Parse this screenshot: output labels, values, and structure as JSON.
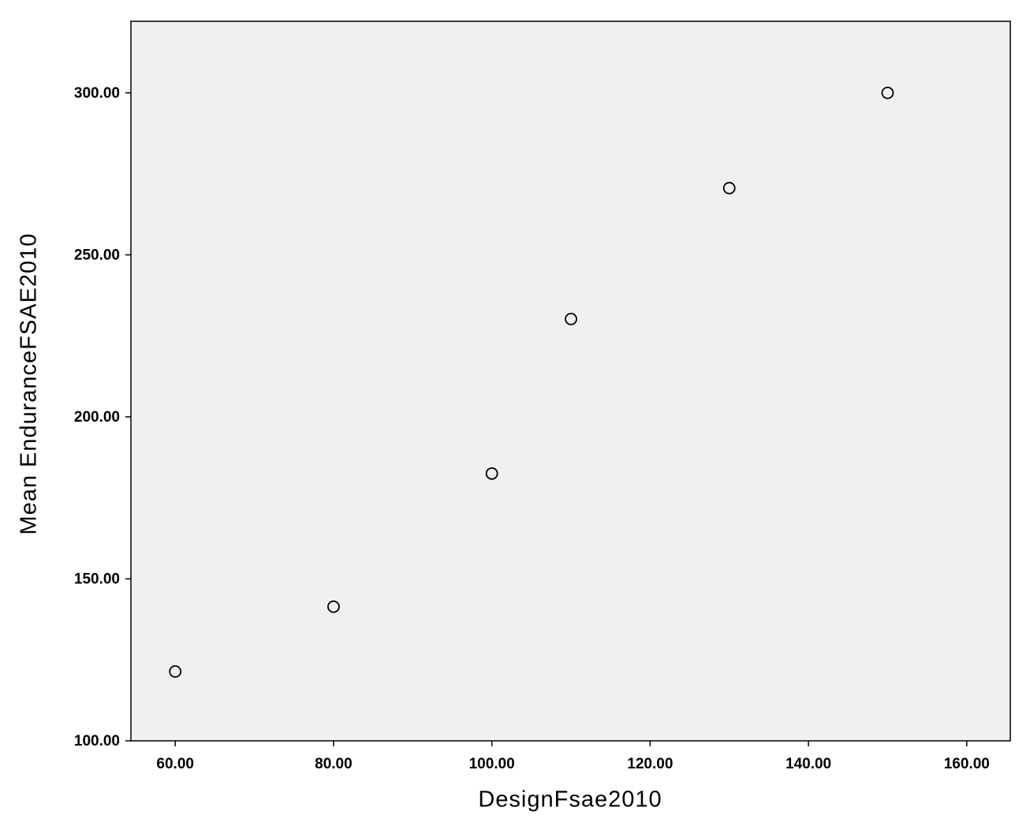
{
  "chart_data": {
    "type": "scatter",
    "x_label": "DesignFsae2010",
    "y_label": "Mean EnduranceFSAE2010",
    "x": [
      60,
      80,
      100,
      110,
      130,
      150
    ],
    "values": [
      121.4,
      141.4,
      182.5,
      230.2,
      270.6,
      300
    ],
    "color": "#000000",
    "background": "#f0f0f0",
    "xlim": [
      54.4,
      165.5
    ],
    "ylim": [
      100,
      322.1
    ],
    "xticks": [
      {
        "value": 60,
        "label": "60.00"
      },
      {
        "value": 80,
        "label": "80.00"
      },
      {
        "value": 100,
        "label": "100.00"
      },
      {
        "value": 120,
        "label": "120.00"
      },
      {
        "value": 140,
        "label": "140.00"
      },
      {
        "value": 160,
        "label": "160.00"
      }
    ],
    "yticks": [
      {
        "value": 100,
        "label": "100.00"
      },
      {
        "value": 150,
        "label": "150.00"
      },
      {
        "value": 200,
        "label": "200.00"
      },
      {
        "value": 250,
        "label": "250.00"
      },
      {
        "value": 300,
        "label": "300.00"
      }
    ],
    "grid": false
  }
}
